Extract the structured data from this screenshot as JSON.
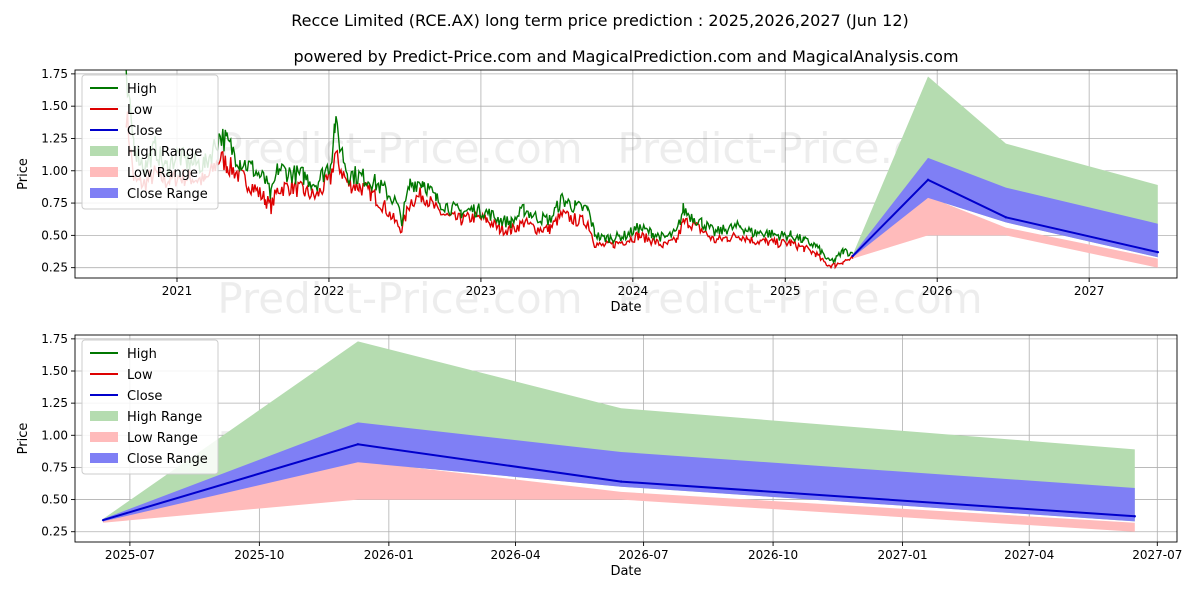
{
  "header": {
    "title": "Recce Limited (RCE.AX) long term price prediction : 2025,2026,2027 (Jun 12)",
    "subtitle": "powered by Predict-Price.com and MagicalPrediction.com and MagicalAnalysis.com"
  },
  "watermark": "Predict-Price.com",
  "colors": {
    "high": "#007700",
    "low": "#dd0000",
    "close": "#0000cc",
    "high_range": "#b5dcb0",
    "low_range": "#ffbbbb",
    "close_range": "#7f7ff5"
  },
  "chart_data": [
    {
      "type": "line",
      "panel": "long term",
      "xlabel": "Date",
      "ylabel": "Price",
      "xlim": [
        "2020-05-01",
        "2027-07-31"
      ],
      "ylim": [
        0.17,
        1.78
      ],
      "grid": true,
      "legend_position": "top-left",
      "x_ticks": [
        "2021",
        "2022",
        "2023",
        "2024",
        "2025",
        "2026",
        "2027"
      ],
      "y_ticks": [
        "0.25",
        "0.50",
        "0.75",
        "1.00",
        "1.25",
        "1.50",
        "1.75"
      ],
      "legend": [
        "High",
        "Low",
        "Close",
        "High Range",
        "Low Range",
        "Close Range"
      ],
      "history": {
        "dates": [
          "2020-09-01",
          "2020-09-20",
          "2020-10-15",
          "2020-11-10",
          "2020-12-05",
          "2021-01-01",
          "2021-02-01",
          "2021-03-10",
          "2021-04-15",
          "2021-05-01",
          "2021-06-01",
          "2021-07-01",
          "2021-08-01",
          "2021-08-15",
          "2021-09-01",
          "2021-10-01",
          "2021-11-01",
          "2021-12-01",
          "2022-01-05",
          "2022-01-15",
          "2022-02-15",
          "2022-03-15",
          "2022-04-15",
          "2022-05-15",
          "2022-06-10",
          "2022-06-25",
          "2022-07-15",
          "2022-08-15",
          "2022-09-15",
          "2022-10-15",
          "2022-11-15",
          "2022-12-15",
          "2023-01-15",
          "2023-02-15",
          "2023-03-15",
          "2023-04-15",
          "2023-05-15",
          "2023-06-15",
          "2023-07-15",
          "2023-08-15",
          "2023-09-15",
          "2023-10-01",
          "2023-10-15",
          "2023-11-15",
          "2023-12-15",
          "2024-01-15",
          "2024-02-15",
          "2024-03-15",
          "2024-04-15",
          "2024-05-01",
          "2024-05-15",
          "2024-06-15",
          "2024-07-15",
          "2024-08-15",
          "2024-09-15",
          "2024-10-15",
          "2024-11-15",
          "2024-12-15",
          "2025-01-15",
          "2025-02-15",
          "2025-03-15",
          "2025-04-01",
          "2025-04-15",
          "2025-05-01",
          "2025-05-20",
          "2025-06-12"
        ],
        "high": [
          1.66,
          1.2,
          1.02,
          1.18,
          1.02,
          1.12,
          1.06,
          1.05,
          1.28,
          1.22,
          1.08,
          1.02,
          0.92,
          0.8,
          1.02,
          0.98,
          0.96,
          0.9,
          1.06,
          1.36,
          0.98,
          0.96,
          0.92,
          0.85,
          0.76,
          0.62,
          0.9,
          0.92,
          0.78,
          0.72,
          0.68,
          0.7,
          0.68,
          0.62,
          0.6,
          0.7,
          0.64,
          0.62,
          0.78,
          0.72,
          0.7,
          0.52,
          0.48,
          0.48,
          0.5,
          0.56,
          0.52,
          0.48,
          0.52,
          0.7,
          0.66,
          0.6,
          0.52,
          0.55,
          0.57,
          0.52,
          0.52,
          0.5,
          0.5,
          0.46,
          0.42,
          0.36,
          0.3,
          0.31,
          0.38,
          0.36
        ],
        "low": [
          1.45,
          0.92,
          0.9,
          0.98,
          0.92,
          0.95,
          0.95,
          0.92,
          1.1,
          1.05,
          0.96,
          0.88,
          0.78,
          0.72,
          0.86,
          0.88,
          0.84,
          0.8,
          0.94,
          1.12,
          0.9,
          0.88,
          0.82,
          0.72,
          0.6,
          0.55,
          0.76,
          0.82,
          0.7,
          0.64,
          0.62,
          0.64,
          0.62,
          0.55,
          0.54,
          0.6,
          0.55,
          0.55,
          0.66,
          0.62,
          0.6,
          0.44,
          0.42,
          0.43,
          0.46,
          0.5,
          0.46,
          0.42,
          0.46,
          0.6,
          0.6,
          0.54,
          0.46,
          0.48,
          0.5,
          0.46,
          0.45,
          0.44,
          0.44,
          0.4,
          0.36,
          0.3,
          0.27,
          0.27,
          0.3,
          0.32
        ]
      },
      "forecast": {
        "dates": [
          "2025-06-12",
          "2025-12-10",
          "2026-06-15",
          "2027-06-15"
        ],
        "close": [
          0.34,
          0.93,
          0.64,
          0.37
        ],
        "high_range": [
          0.35,
          1.73,
          1.21,
          0.89
        ],
        "close_range_upper": [
          0.35,
          1.1,
          0.87,
          0.59
        ],
        "close_range_lower": [
          0.33,
          0.79,
          0.6,
          0.33
        ],
        "low_range_upper": [
          0.34,
          0.8,
          0.56,
          0.32
        ],
        "low_range_lower": [
          0.32,
          0.5,
          0.5,
          0.25
        ]
      }
    },
    {
      "type": "area",
      "panel": "forecast detail",
      "xlabel": "Date",
      "ylabel": "Price",
      "xlim": [
        "2025-05-23",
        "2027-07-15"
      ],
      "ylim": [
        0.17,
        1.78
      ],
      "grid": true,
      "legend_position": "top-left",
      "x_ticks": [
        "2025-07",
        "2025-10",
        "2026-01",
        "2026-04",
        "2026-07",
        "2026-10",
        "2027-01",
        "2027-04",
        "2027-07"
      ],
      "y_ticks": [
        "0.25",
        "0.50",
        "0.75",
        "1.00",
        "1.25",
        "1.50",
        "1.75"
      ],
      "legend": [
        "High",
        "Low",
        "Close",
        "High Range",
        "Low Range",
        "Close Range"
      ],
      "forecast": {
        "dates": [
          "2025-06-12",
          "2025-12-10",
          "2026-06-15",
          "2027-06-15"
        ],
        "close": [
          0.34,
          0.93,
          0.64,
          0.37
        ],
        "high_range": [
          0.35,
          1.73,
          1.21,
          0.89
        ],
        "close_range_upper": [
          0.35,
          1.1,
          0.87,
          0.59
        ],
        "close_range_lower": [
          0.33,
          0.79,
          0.6,
          0.33
        ],
        "low_range_upper": [
          0.34,
          0.8,
          0.56,
          0.32
        ],
        "low_range_lower": [
          0.32,
          0.5,
          0.5,
          0.25
        ]
      }
    }
  ]
}
